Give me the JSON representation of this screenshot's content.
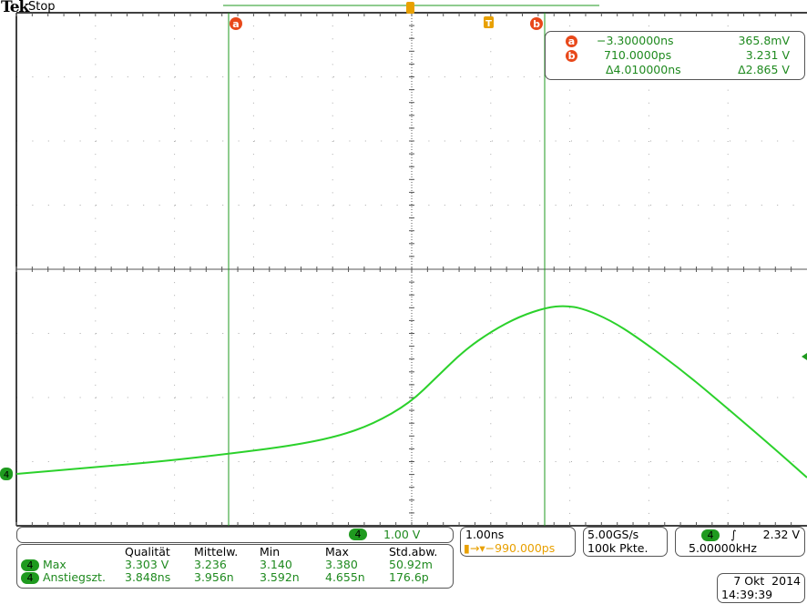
{
  "header": {
    "brand": "Tek",
    "state": "Stop"
  },
  "colors": {
    "trace": "#2bd12b",
    "cursor": "#1f9a1f",
    "cursor_badge": "#e8481a",
    "trigger": "#e8a000",
    "grid": "#888888"
  },
  "cursors": {
    "a_label": "a",
    "b_label": "b",
    "trigger_label": "T",
    "a_time": "−3.300000ns",
    "a_value": "365.8mV",
    "b_time": "710.0000ps",
    "b_value": "3.231 V",
    "delta_time": "Δ4.010000ns",
    "delta_value": "Δ2.865 V"
  },
  "channel": {
    "number": "4",
    "scale": "1.00 V"
  },
  "timebase": {
    "scale": "1.00ns",
    "position": "−990.000ps"
  },
  "acquisition": {
    "rate": "5.00GS/s",
    "points": "100k Pkte."
  },
  "trigger": {
    "source": "4",
    "slope": "rising-edge-icon",
    "level": "2.32 V",
    "frequency": "5.00000kHz"
  },
  "datetime": {
    "date": "7 Okt  2014",
    "time": "14:39:39"
  },
  "measurements": {
    "headers": [
      "Qualität",
      "Mittelw.",
      "Min",
      "Max",
      "Std.abw."
    ],
    "rows": [
      {
        "channel": "4",
        "name": "Max",
        "values": [
          "3.303 V",
          "3.236",
          "3.140",
          "3.380",
          "50.92m"
        ]
      },
      {
        "channel": "4",
        "name": "Anstiegszt.",
        "values": [
          "3.848ns",
          "3.956n",
          "3.592n",
          "4.655n",
          "176.6p"
        ]
      }
    ]
  }
}
